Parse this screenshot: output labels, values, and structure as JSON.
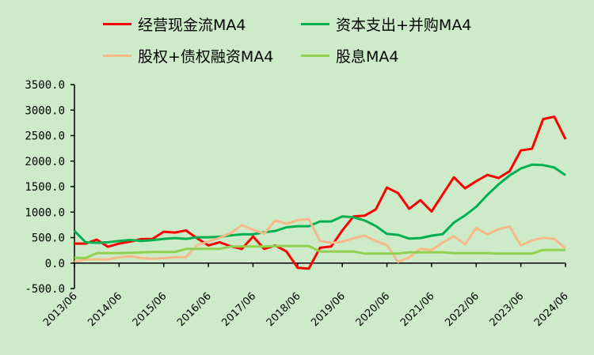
{
  "chart_data": {
    "type": "line",
    "title": "",
    "xlabel": "",
    "ylabel": "",
    "ylim": [
      -500,
      3500
    ],
    "y_ticks": [
      "-500.0",
      "0.0",
      "500.0",
      "1000.0",
      "1500.0",
      "2000.0",
      "2500.0",
      "3000.0",
      "3500.0"
    ],
    "y_tick_values": [
      -500,
      0,
      500,
      1000,
      1500,
      2000,
      2500,
      3000,
      3500
    ],
    "x_tick_labels": [
      "2013/06",
      "2014/06",
      "2015/06",
      "2016/06",
      "2017/06",
      "2018/06",
      "2019/06",
      "2020/06",
      "2021/06",
      "2022/06",
      "2023/06",
      "2024/06"
    ],
    "x_start": "2013/06",
    "x_frequency": "quarterly",
    "legend_position": "top",
    "series": [
      {
        "name": "经营现金流MA4",
        "color": "#ff0000",
        "values": [
          382,
          382,
          460,
          320,
          382,
          423,
          470,
          475,
          614,
          599,
          640,
          485,
          346,
          408,
          330,
          279,
          521,
          279,
          346,
          227,
          -93,
          -108,
          300,
          325,
          640,
          914,
          929,
          1053,
          1482,
          1373,
          1064,
          1234,
          1012,
          1348,
          1683,
          1466,
          1606,
          1730,
          1668,
          1802,
          2210,
          2241,
          2824,
          2870,
          2432
        ]
      },
      {
        "name": "资本支出+并购MA4",
        "color": "#00b050",
        "values": [
          630,
          408,
          398,
          408,
          434,
          454,
          434,
          449,
          475,
          490,
          475,
          506,
          506,
          516,
          542,
          563,
          563,
          604,
          630,
          702,
          723,
          723,
          816,
          816,
          914,
          898,
          836,
          728,
          573,
          552,
          480,
          490,
          537,
          568,
          795,
          934,
          1105,
          1337,
          1544,
          1719,
          1854,
          1931,
          1921,
          1874,
          1724
        ]
      },
      {
        "name": "股权+债权融资MA4",
        "color": "#f8b98a",
        "values": [
          31,
          67,
          72,
          72,
          114,
          134,
          98,
          83,
          98,
          114,
          119,
          351,
          423,
          496,
          589,
          743,
          651,
          578,
          836,
          769,
          842,
          862,
          434,
          397,
          418,
          485,
          537,
          434,
          356,
          21,
          114,
          279,
          253,
          403,
          527,
          367,
          687,
          563,
          666,
          718,
          346,
          444,
          496,
          475,
          289
        ]
      },
      {
        "name": "股息MA4",
        "color": "#92d050",
        "values": [
          103,
          98,
          196,
          196,
          196,
          201,
          212,
          217,
          217,
          217,
          279,
          279,
          279,
          279,
          325,
          325,
          325,
          325,
          336,
          336,
          336,
          336,
          227,
          227,
          227,
          227,
          186,
          186,
          186,
          186,
          212,
          212,
          212,
          212,
          196,
          196,
          196,
          196,
          186,
          186,
          186,
          186,
          258,
          258,
          258
        ]
      }
    ]
  }
}
